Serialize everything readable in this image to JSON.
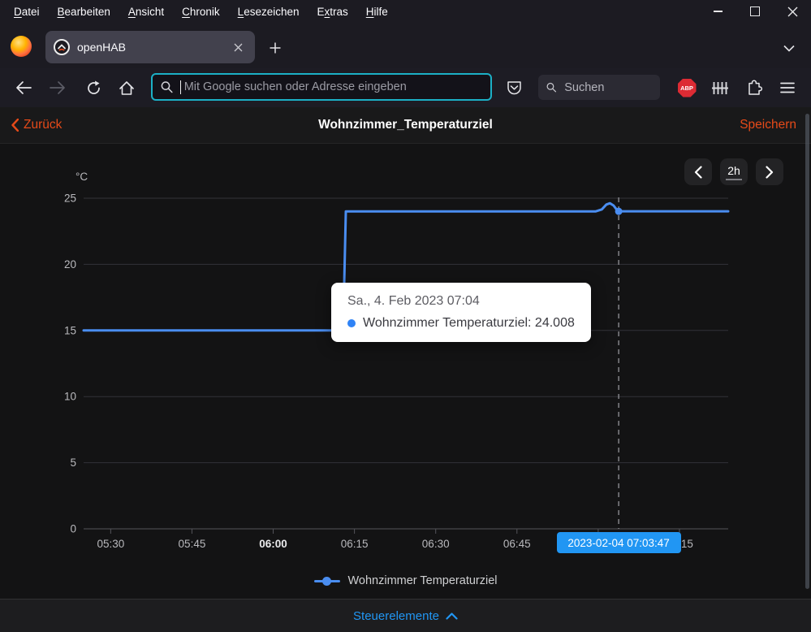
{
  "colors": {
    "accent_orange": "#e64a19",
    "link_blue": "#2196f3",
    "series_blue": "#4a8df0",
    "focus_teal": "#1cb0c6"
  },
  "menubar": {
    "items": [
      {
        "label": "Datei",
        "accel": 0
      },
      {
        "label": "Bearbeiten",
        "accel": 0
      },
      {
        "label": "Ansicht",
        "accel": 0
      },
      {
        "label": "Chronik",
        "accel": 0
      },
      {
        "label": "Lesezeichen",
        "accel": 0
      },
      {
        "label": "Extras",
        "accel": 1
      },
      {
        "label": "Hilfe",
        "accel": 0
      }
    ]
  },
  "tabbar": {
    "tab_title": "openHAB"
  },
  "navbar": {
    "url_placeholder": "Mit Google suchen oder Adresse eingeben",
    "search_placeholder": "Suchen",
    "abp_label": "ABP"
  },
  "page_header": {
    "back": "Zurück",
    "title": "Wohnzimmer_Temperaturziel",
    "save": "Speichern"
  },
  "chart_controls": {
    "range": "2h"
  },
  "chart_data": {
    "type": "line",
    "unit": "°C",
    "y_ticks": [
      0,
      5,
      10,
      15,
      20,
      25
    ],
    "y_range": [
      0,
      25
    ],
    "x_range": [
      "05:25",
      "07:24"
    ],
    "x_ticks": [
      {
        "label": "05:30",
        "time": "05:30",
        "bold": false
      },
      {
        "label": "05:45",
        "time": "05:45",
        "bold": false
      },
      {
        "label": "06:00",
        "time": "06:00",
        "bold": true
      },
      {
        "label": "06:15",
        "time": "06:15",
        "bold": false
      },
      {
        "label": "06:30",
        "time": "06:30",
        "bold": false
      },
      {
        "label": "06:45",
        "time": "06:45",
        "bold": false
      },
      {
        "label": "07:00",
        "time": "07:00",
        "bold": false
      },
      {
        "label": "07:15",
        "time": "07:15",
        "bold": false
      }
    ],
    "series": [
      {
        "name": "Wohnzimmer Temperaturziel",
        "color": "#4a8df0",
        "points": [
          [
            "05:25:00",
            15
          ],
          [
            "06:12:55",
            15
          ],
          [
            "06:13:25",
            24
          ],
          [
            "06:59:30",
            24
          ],
          [
            "07:00:40",
            24.15
          ],
          [
            "07:01:30",
            24.52
          ],
          [
            "07:02:10",
            24.62
          ],
          [
            "07:02:50",
            24.45
          ],
          [
            "07:03:20",
            24.18
          ],
          [
            "07:03:47",
            24.008
          ],
          [
            "07:24:00",
            24.008
          ]
        ]
      }
    ],
    "cursor": {
      "time": "07:03:47",
      "value": 24.008,
      "label": "2023-02-04 07:03:47"
    },
    "tooltip": {
      "line1": "Sa., 4. Feb 2023 07:04",
      "line2": "Wohnzimmer Temperaturziel: 24.008"
    },
    "legend": [
      {
        "label": "Wohnzimmer Temperaturziel",
        "color": "#4a8df0"
      }
    ]
  },
  "bottom_bar": {
    "label": "Steuerelemente"
  }
}
